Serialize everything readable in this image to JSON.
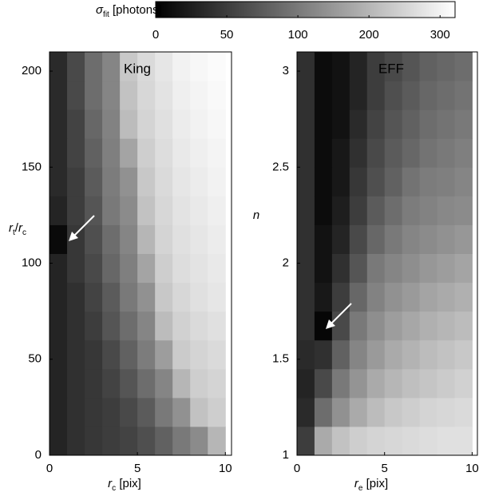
{
  "chart_data": [
    {
      "type": "colorbar",
      "label": [
        {
          "text": "σ",
          "italic": true
        },
        {
          "text": "fit",
          "sub": true
        },
        {
          "text": " [photons]"
        }
      ],
      "ticks": [
        0,
        50,
        100,
        200,
        300
      ],
      "clim": [
        0,
        330
      ]
    },
    {
      "type": "heatmap",
      "title": "King",
      "xlabel": [
        {
          "text": "r",
          "italic": true
        },
        {
          "text": "c",
          "sub": true
        },
        {
          "text": "  [pix]"
        }
      ],
      "ylabel": [
        {
          "text": "r",
          "italic": true
        },
        {
          "text": "t",
          "sub": true
        },
        {
          "text": "/"
        },
        {
          "text": "r",
          "italic": true
        },
        {
          "text": "c",
          "sub": true
        }
      ],
      "xlim": [
        0,
        10.35
      ],
      "xticks": [
        0,
        5,
        10
      ],
      "ylim": [
        0,
        210
      ],
      "yticks": [
        0,
        50,
        100,
        150,
        200
      ],
      "x_edges": [
        0,
        1,
        2,
        3,
        4,
        5,
        6,
        7,
        8,
        9,
        10
      ],
      "y_edges": [
        0,
        15,
        30,
        45,
        60,
        75,
        90,
        105,
        120,
        135,
        150,
        165,
        180,
        195,
        210
      ],
      "z": [
        [
          30,
          40,
          45,
          50,
          55,
          65,
          80,
          100,
          130,
          200
        ],
        [
          30,
          40,
          45,
          50,
          60,
          75,
          100,
          140,
          220,
          240
        ],
        [
          30,
          40,
          45,
          55,
          70,
          90,
          120,
          200,
          240,
          250
        ],
        [
          30,
          40,
          45,
          60,
          80,
          105,
          160,
          235,
          250,
          260
        ],
        [
          30,
          40,
          50,
          70,
          90,
          120,
          210,
          245,
          260,
          270
        ],
        [
          30,
          40,
          55,
          75,
          100,
          140,
          230,
          255,
          270,
          280
        ],
        [
          30,
          45,
          60,
          85,
          110,
          170,
          240,
          265,
          275,
          285
        ],
        [
          8,
          45,
          65,
          90,
          120,
          200,
          250,
          270,
          280,
          290
        ],
        [
          30,
          50,
          70,
          100,
          130,
          220,
          255,
          275,
          285,
          295
        ],
        [
          35,
          50,
          75,
          105,
          140,
          230,
          260,
          280,
          290,
          300
        ],
        [
          35,
          55,
          80,
          110,
          170,
          240,
          265,
          285,
          295,
          305
        ],
        [
          35,
          55,
          85,
          115,
          210,
          250,
          270,
          290,
          300,
          310
        ],
        [
          35,
          60,
          90,
          120,
          220,
          255,
          275,
          295,
          305,
          315
        ],
        [
          35,
          60,
          90,
          120,
          230,
          260,
          280,
          300,
          310,
          320
        ]
      ]
    },
    {
      "type": "heatmap",
      "title": "EFF",
      "xlabel": [
        {
          "text": "r",
          "italic": true
        },
        {
          "text": "e",
          "sub": true
        },
        {
          "text": "  [pix]"
        }
      ],
      "ylabel": [
        {
          "text": "n",
          "italic": true
        }
      ],
      "xlim": [
        0,
        10.3
      ],
      "xticks": [
        0,
        5,
        10
      ],
      "ylim": [
        1,
        3.1
      ],
      "yticks": [
        1,
        1.5,
        2,
        2.5,
        3
      ],
      "x_edges": [
        0,
        1,
        2,
        3,
        4,
        5,
        6,
        7,
        8,
        9,
        10
      ],
      "y_edges": [
        1,
        1.15,
        1.3,
        1.45,
        1.6,
        1.75,
        1.9,
        2.05,
        2.2,
        2.35,
        2.5,
        2.65,
        2.8,
        2.95,
        3.1
      ],
      "z": [
        [
          50,
          180,
          220,
          240,
          250,
          255,
          260,
          265,
          270,
          270
        ],
        [
          35,
          90,
          140,
          180,
          210,
          230,
          240,
          250,
          255,
          260
        ],
        [
          30,
          60,
          100,
          145,
          180,
          200,
          215,
          225,
          235,
          245
        ],
        [
          35,
          40,
          80,
          120,
          155,
          180,
          195,
          210,
          220,
          230
        ],
        [
          40,
          5,
          60,
          100,
          135,
          160,
          175,
          190,
          200,
          210
        ],
        [
          40,
          20,
          50,
          85,
          115,
          140,
          155,
          170,
          180,
          190
        ],
        [
          40,
          15,
          40,
          70,
          100,
          120,
          135,
          150,
          160,
          170
        ],
        [
          40,
          15,
          30,
          60,
          85,
          100,
          120,
          130,
          140,
          150
        ],
        [
          40,
          10,
          25,
          50,
          75,
          90,
          105,
          115,
          125,
          130
        ],
        [
          40,
          10,
          20,
          45,
          65,
          80,
          95,
          105,
          110,
          120
        ],
        [
          40,
          10,
          20,
          40,
          60,
          75,
          85,
          95,
          100,
          110
        ],
        [
          40,
          10,
          15,
          35,
          55,
          70,
          80,
          90,
          95,
          100
        ],
        [
          40,
          10,
          15,
          30,
          50,
          65,
          75,
          85,
          90,
          95
        ],
        [
          40,
          10,
          15,
          30,
          50,
          60,
          70,
          80,
          85,
          90
        ]
      ]
    }
  ]
}
